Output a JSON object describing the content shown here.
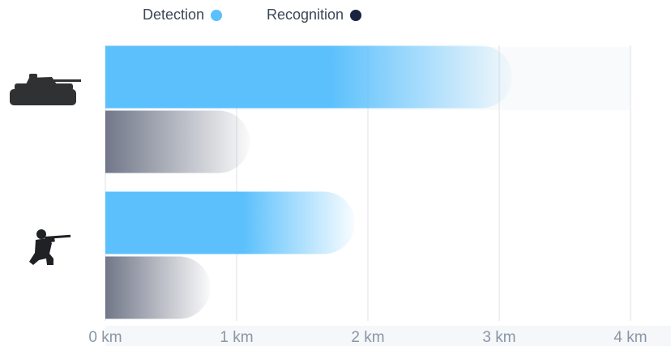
{
  "chart_data": {
    "type": "bar",
    "orientation": "horizontal",
    "categories": [
      "tank-icon",
      "soldier-icon"
    ],
    "series": [
      {
        "name": "Detection",
        "color": "#5bc0fc",
        "values": [
          3.1,
          1.9
        ]
      },
      {
        "name": "Recognition",
        "color": "#1a2440",
        "values": [
          1.1,
          0.8
        ]
      }
    ],
    "xlim": [
      0,
      4
    ],
    "xticks": [
      0,
      1,
      2,
      3,
      4
    ],
    "xtick_labels": [
      "0 km",
      "1 km",
      "2 km",
      "3 km",
      "4 km"
    ],
    "grid": true,
    "legend_position": "top"
  },
  "legend": {
    "detection_label": "Detection",
    "recognition_label": "Recognition",
    "detection_color": "#5bc0fc",
    "recognition_color": "#1a2440"
  },
  "icons": {
    "row1": "tank-icon",
    "row2": "soldier-icon"
  }
}
